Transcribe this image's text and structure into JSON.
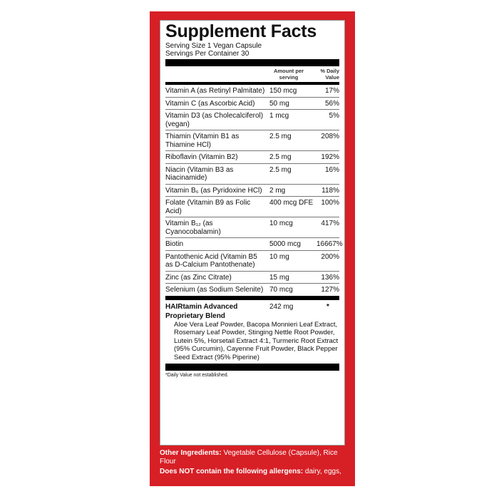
{
  "title": "Supplement Facts",
  "serving_size": "Serving Size 1 Vegan Capsule",
  "servings_per_container": "Servings Per Container 30",
  "headers": {
    "amount": "Amount per serving",
    "dv": "% Daily Value"
  },
  "rows": [
    {
      "name": "Vitamin A (as Retinyl Palmitate)",
      "amount": "150 mcg",
      "dv": "17%"
    },
    {
      "name": "Vitamin C (as Ascorbic Acid)",
      "amount": "50 mg",
      "dv": "56%"
    },
    {
      "name": "Vitamin D3 (as Cholecalciferol) (vegan)",
      "amount": "1 mcg",
      "dv": "5%"
    },
    {
      "name": "Thiamin (Vitamin B1 as Thiamine HCl)",
      "amount": "2.5 mg",
      "dv": "208%"
    },
    {
      "name": "Riboflavin (Vitamin B2)",
      "amount": "2.5 mg",
      "dv": "192%"
    },
    {
      "name": "Niacin (Vitamin B3 as Niacinamide)",
      "amount": "2.5 mg",
      "dv": "16%"
    },
    {
      "name": "Vitamin B₆ (as Pyridoxine HCl)",
      "amount": "2 mg",
      "dv": "118%"
    },
    {
      "name": "Folate (Vitamin B9 as Folic Acid)",
      "amount": "400 mcg DFE",
      "dv": "100%"
    },
    {
      "name": "Vitamin B₁₂ (as Cyanocobalamin)",
      "amount": "10 mcg",
      "dv": "417%"
    },
    {
      "name": "Biotin",
      "amount": "5000 mcg",
      "dv": "16667%"
    },
    {
      "name": "Pantothenic Acid (Vitamin B5 as D-Calcium Pantothenate)",
      "amount": "10 mg",
      "dv": "200%"
    },
    {
      "name": "Zinc (as Zinc Citrate)",
      "amount": "15 mg",
      "dv": "136%"
    },
    {
      "name": "Selenium (as Sodium Selenite)",
      "amount": "70 mcg",
      "dv": "127%"
    }
  ],
  "blend": {
    "name": "HAIRtamin Advanced Proprietary Blend",
    "amount": "242 mg",
    "dv": "*",
    "ingredients": "Aloe Vera Leaf Powder, Bacopa Monnieri Leaf Extract, Rosemary Leaf Powder, Stinging Nettle Root Powder, Lutein 5%, Horsetail Extract 4:1, Turmeric Root Extract (95% Curcumin), Cayenne Fruit Powder, Black Pepper Seed Extract (95% Piperine)"
  },
  "footnote": "*Daily Value not established.",
  "other": {
    "label": "Other Ingredients:",
    "value": "Vegetable Cellulose (Capsule), Rice Flour"
  },
  "allergens": {
    "label": "Does NOT contain the following allergens:",
    "value": "dairy, eggs,"
  },
  "colors": {
    "panel": "#d71f26"
  }
}
